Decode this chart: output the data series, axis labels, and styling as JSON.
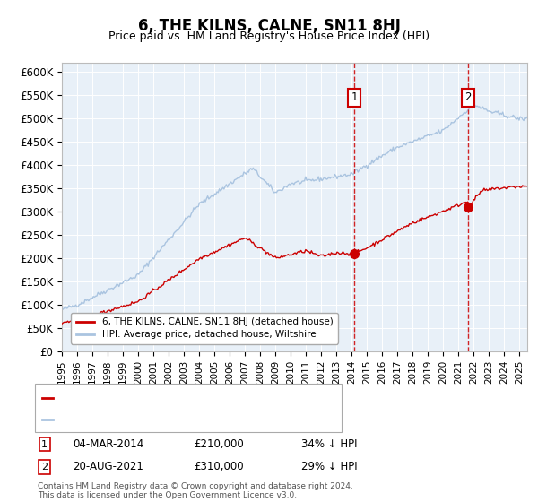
{
  "title": "6, THE KILNS, CALNE, SN11 8HJ",
  "subtitle": "Price paid vs. HM Land Registry's House Price Index (HPI)",
  "ylabel_ticks": [
    "£0",
    "£50K",
    "£100K",
    "£150K",
    "£200K",
    "£250K",
    "£300K",
    "£350K",
    "£400K",
    "£450K",
    "£500K",
    "£550K",
    "£600K"
  ],
  "ylim": [
    0,
    620000
  ],
  "ytick_vals": [
    0,
    50000,
    100000,
    150000,
    200000,
    250000,
    300000,
    350000,
    400000,
    450000,
    500000,
    550000,
    600000
  ],
  "sale1_date": "04-MAR-2014",
  "sale1_price": 210000,
  "sale1_label": "34% ↓ HPI",
  "sale2_date": "20-AUG-2021",
  "sale2_price": 310000,
  "sale2_label": "29% ↓ HPI",
  "sale1_x": 2014.17,
  "sale2_x": 2021.63,
  "hpi_color": "#aac4e0",
  "price_color": "#cc0000",
  "vline_color": "#cc0000",
  "dot_color": "#cc0000",
  "background_color": "#e8f0f8",
  "legend_label_price": "6, THE KILNS, CALNE, SN11 8HJ (detached house)",
  "legend_label_hpi": "HPI: Average price, detached house, Wiltshire",
  "footer": "Contains HM Land Registry data © Crown copyright and database right 2024.\nThis data is licensed under the Open Government Licence v3.0.",
  "xmin": 1995,
  "xmax": 2025.5,
  "marker1_y": 545000,
  "marker2_y": 545000
}
